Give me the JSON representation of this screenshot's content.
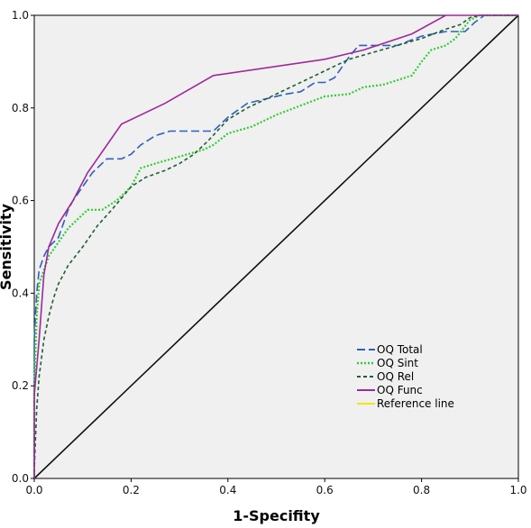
{
  "chart_data": {
    "type": "line",
    "title": "",
    "xlabel": "1-Specifity",
    "ylabel": "Sensitivity",
    "xlim": [
      0,
      1
    ],
    "ylim": [
      0,
      1
    ],
    "xticks": [
      "0.0",
      "0.2",
      "0.4",
      "0.6",
      "0.8",
      "1.0"
    ],
    "yticks": [
      "0.0",
      "0.2",
      "0.4",
      "0.6",
      "0.8",
      "1.0"
    ],
    "grid": false,
    "legend_position": "bottom-right",
    "series": [
      {
        "name": "OQ Total",
        "color": "#2f5fbf",
        "dash": "long-dash",
        "points": [
          [
            0,
            0
          ],
          [
            0,
            0.3
          ],
          [
            0.005,
            0.4
          ],
          [
            0.01,
            0.45
          ],
          [
            0.02,
            0.48
          ],
          [
            0.03,
            0.5
          ],
          [
            0.05,
            0.52
          ],
          [
            0.06,
            0.55
          ],
          [
            0.07,
            0.58
          ],
          [
            0.08,
            0.6
          ],
          [
            0.1,
            0.63
          ],
          [
            0.12,
            0.66
          ],
          [
            0.15,
            0.69
          ],
          [
            0.18,
            0.69
          ],
          [
            0.2,
            0.7
          ],
          [
            0.22,
            0.72
          ],
          [
            0.25,
            0.74
          ],
          [
            0.28,
            0.75
          ],
          [
            0.37,
            0.75
          ],
          [
            0.4,
            0.78
          ],
          [
            0.44,
            0.81
          ],
          [
            0.48,
            0.82
          ],
          [
            0.52,
            0.83
          ],
          [
            0.55,
            0.835
          ],
          [
            0.58,
            0.855
          ],
          [
            0.6,
            0.855
          ],
          [
            0.62,
            0.865
          ],
          [
            0.65,
            0.91
          ],
          [
            0.67,
            0.935
          ],
          [
            0.7,
            0.935
          ],
          [
            0.75,
            0.935
          ],
          [
            0.8,
            0.955
          ],
          [
            0.85,
            0.965
          ],
          [
            0.89,
            0.965
          ],
          [
            0.91,
            0.985
          ],
          [
            0.93,
            1.0
          ],
          [
            1.0,
            1.0
          ]
        ]
      },
      {
        "name": "OQ Sint",
        "color": "#33cc33",
        "dash": "dotted",
        "points": [
          [
            0,
            0
          ],
          [
            0,
            0.2
          ],
          [
            0.005,
            0.35
          ],
          [
            0.01,
            0.42
          ],
          [
            0.02,
            0.45
          ],
          [
            0.03,
            0.48
          ],
          [
            0.05,
            0.51
          ],
          [
            0.07,
            0.54
          ],
          [
            0.09,
            0.56
          ],
          [
            0.11,
            0.58
          ],
          [
            0.14,
            0.58
          ],
          [
            0.17,
            0.6
          ],
          [
            0.2,
            0.63
          ],
          [
            0.22,
            0.67
          ],
          [
            0.25,
            0.68
          ],
          [
            0.3,
            0.695
          ],
          [
            0.35,
            0.71
          ],
          [
            0.37,
            0.72
          ],
          [
            0.4,
            0.745
          ],
          [
            0.45,
            0.76
          ],
          [
            0.5,
            0.785
          ],
          [
            0.55,
            0.805
          ],
          [
            0.6,
            0.825
          ],
          [
            0.65,
            0.83
          ],
          [
            0.68,
            0.845
          ],
          [
            0.72,
            0.85
          ],
          [
            0.75,
            0.86
          ],
          [
            0.78,
            0.87
          ],
          [
            0.8,
            0.9
          ],
          [
            0.82,
            0.925
          ],
          [
            0.85,
            0.935
          ],
          [
            0.87,
            0.95
          ],
          [
            0.9,
            0.99
          ],
          [
            0.92,
            1.0
          ],
          [
            1.0,
            1.0
          ]
        ]
      },
      {
        "name": "OQ Rel",
        "color": "#1f5f2f",
        "dash": "short-dash",
        "points": [
          [
            0,
            0
          ],
          [
            0,
            0.02
          ],
          [
            0.005,
            0.15
          ],
          [
            0.01,
            0.22
          ],
          [
            0.02,
            0.3
          ],
          [
            0.03,
            0.35
          ],
          [
            0.04,
            0.39
          ],
          [
            0.05,
            0.42
          ],
          [
            0.07,
            0.46
          ],
          [
            0.1,
            0.5
          ],
          [
            0.13,
            0.545
          ],
          [
            0.16,
            0.58
          ],
          [
            0.2,
            0.63
          ],
          [
            0.23,
            0.65
          ],
          [
            0.27,
            0.665
          ],
          [
            0.3,
            0.68
          ],
          [
            0.33,
            0.7
          ],
          [
            0.36,
            0.73
          ],
          [
            0.4,
            0.775
          ],
          [
            0.44,
            0.8
          ],
          [
            0.48,
            0.82
          ],
          [
            0.52,
            0.84
          ],
          [
            0.56,
            0.86
          ],
          [
            0.6,
            0.88
          ],
          [
            0.65,
            0.905
          ],
          [
            0.7,
            0.92
          ],
          [
            0.75,
            0.935
          ],
          [
            0.8,
            0.95
          ],
          [
            0.85,
            0.97
          ],
          [
            0.88,
            0.98
          ],
          [
            0.9,
            0.995
          ],
          [
            0.92,
            1.0
          ],
          [
            1.0,
            1.0
          ]
        ]
      },
      {
        "name": "OQ Func",
        "color": "#a0289a",
        "dash": "solid",
        "points": [
          [
            0,
            0
          ],
          [
            0,
            0.18
          ],
          [
            0.01,
            0.3
          ],
          [
            0.02,
            0.44
          ],
          [
            0.03,
            0.5
          ],
          [
            0.05,
            0.55
          ],
          [
            0.08,
            0.6
          ],
          [
            0.11,
            0.66
          ],
          [
            0.18,
            0.765
          ],
          [
            0.27,
            0.81
          ],
          [
            0.37,
            0.87
          ],
          [
            0.6,
            0.905
          ],
          [
            0.68,
            0.925
          ],
          [
            0.78,
            0.96
          ],
          [
            0.85,
            1.0
          ],
          [
            1.0,
            1.0
          ]
        ]
      },
      {
        "name": "Reference line",
        "color": "#111111",
        "legend_color": "#f2e400",
        "dash": "solid",
        "points": [
          [
            0,
            0
          ],
          [
            1,
            1
          ]
        ]
      }
    ]
  }
}
